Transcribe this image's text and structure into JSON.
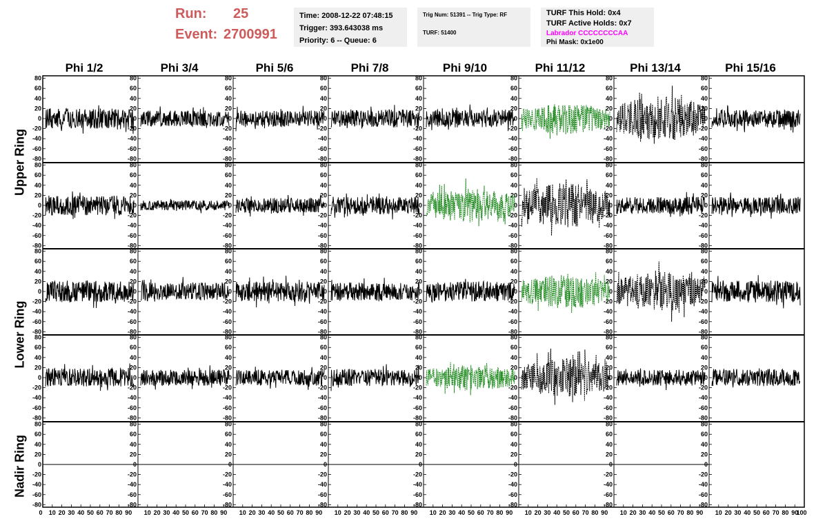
{
  "header": {
    "run_label": "Run:",
    "run_value": "25",
    "event_label": "Event:",
    "event_value": "2700991",
    "time": "Time: 2008-12-22 07:48:15",
    "trigger": "Trigger: 393.643038 ms",
    "priority": "Priority: 6 -- Queue: 6",
    "trig_num": "Trig Num: 51391 -- Trig Type: RF",
    "turf": "TURF: 51400",
    "turf_this_hold": "TURF This Hold: 0x4",
    "turf_active_holds": "TURF Active Holds: 0x7",
    "labrador": "Labrador CCCCCCCCAA",
    "phi_mask": "Phi Mask: 0x1e00"
  },
  "colors": {
    "run_text": "#cd5b5b",
    "labrador_text": "#ff00ff",
    "highlight_trace": "#228b22",
    "trace": "#000000",
    "info_box_bg": "#efefef"
  },
  "chart_data": {
    "type": "line",
    "columns": [
      "Phi 1/2",
      "Phi 3/4",
      "Phi 5/6",
      "Phi 7/8",
      "Phi 9/10",
      "Phi 11/12",
      "Phi 13/14",
      "Phi 15/16"
    ],
    "rows": [
      "Upper Ring",
      "Upper Ring",
      "Lower Ring",
      "Lower Ring",
      "Nadir Ring"
    ],
    "row_labels": [
      {
        "text": "Upper Ring",
        "spans": [
          0,
          1
        ]
      },
      {
        "text": "Lower Ring",
        "spans": [
          2,
          3
        ]
      },
      {
        "text": "Nadir Ring",
        "spans": [
          4
        ]
      }
    ],
    "ylim": [
      -85,
      85
    ],
    "xlim": [
      0,
      100
    ],
    "yticks": [
      -80,
      -60,
      -40,
      -20,
      0,
      20,
      40,
      60,
      80
    ],
    "xticks_first": [
      "0",
      "10",
      "20",
      "30",
      "40",
      "50",
      "60",
      "70",
      "80",
      "90"
    ],
    "xticks_other": [
      "10",
      "20",
      "30",
      "40",
      "50",
      "60",
      "70",
      "80",
      "90"
    ],
    "xtick_last": "100",
    "traces": [
      [
        "solid",
        "solid",
        "solid",
        "solid",
        "solid",
        "dashed-green",
        "dashed-black",
        "solid"
      ],
      [
        "solid",
        "solid",
        "solid",
        "solid",
        "dashed-green",
        "dashed-black",
        "solid",
        "solid"
      ],
      [
        "solid",
        "solid",
        "solid",
        "solid",
        "solid",
        "dashed-green",
        "dashed-black",
        "solid"
      ],
      [
        "solid",
        "solid",
        "solid",
        "solid",
        "dashed-green",
        "dashed-black",
        "solid",
        "solid"
      ],
      [
        "flat",
        "flat",
        "flat",
        "flat",
        "flat",
        "flat",
        "flat",
        "none"
      ]
    ],
    "amplitudes": [
      [
        20,
        16,
        16,
        18,
        18,
        24,
        34,
        18
      ],
      [
        20,
        10,
        15,
        18,
        26,
        34,
        17,
        17
      ],
      [
        22,
        18,
        20,
        18,
        20,
        26,
        30,
        22
      ],
      [
        18,
        16,
        16,
        17,
        20,
        30,
        16,
        17
      ],
      [
        0,
        0,
        0,
        0,
        0,
        0,
        0,
        0
      ]
    ]
  }
}
